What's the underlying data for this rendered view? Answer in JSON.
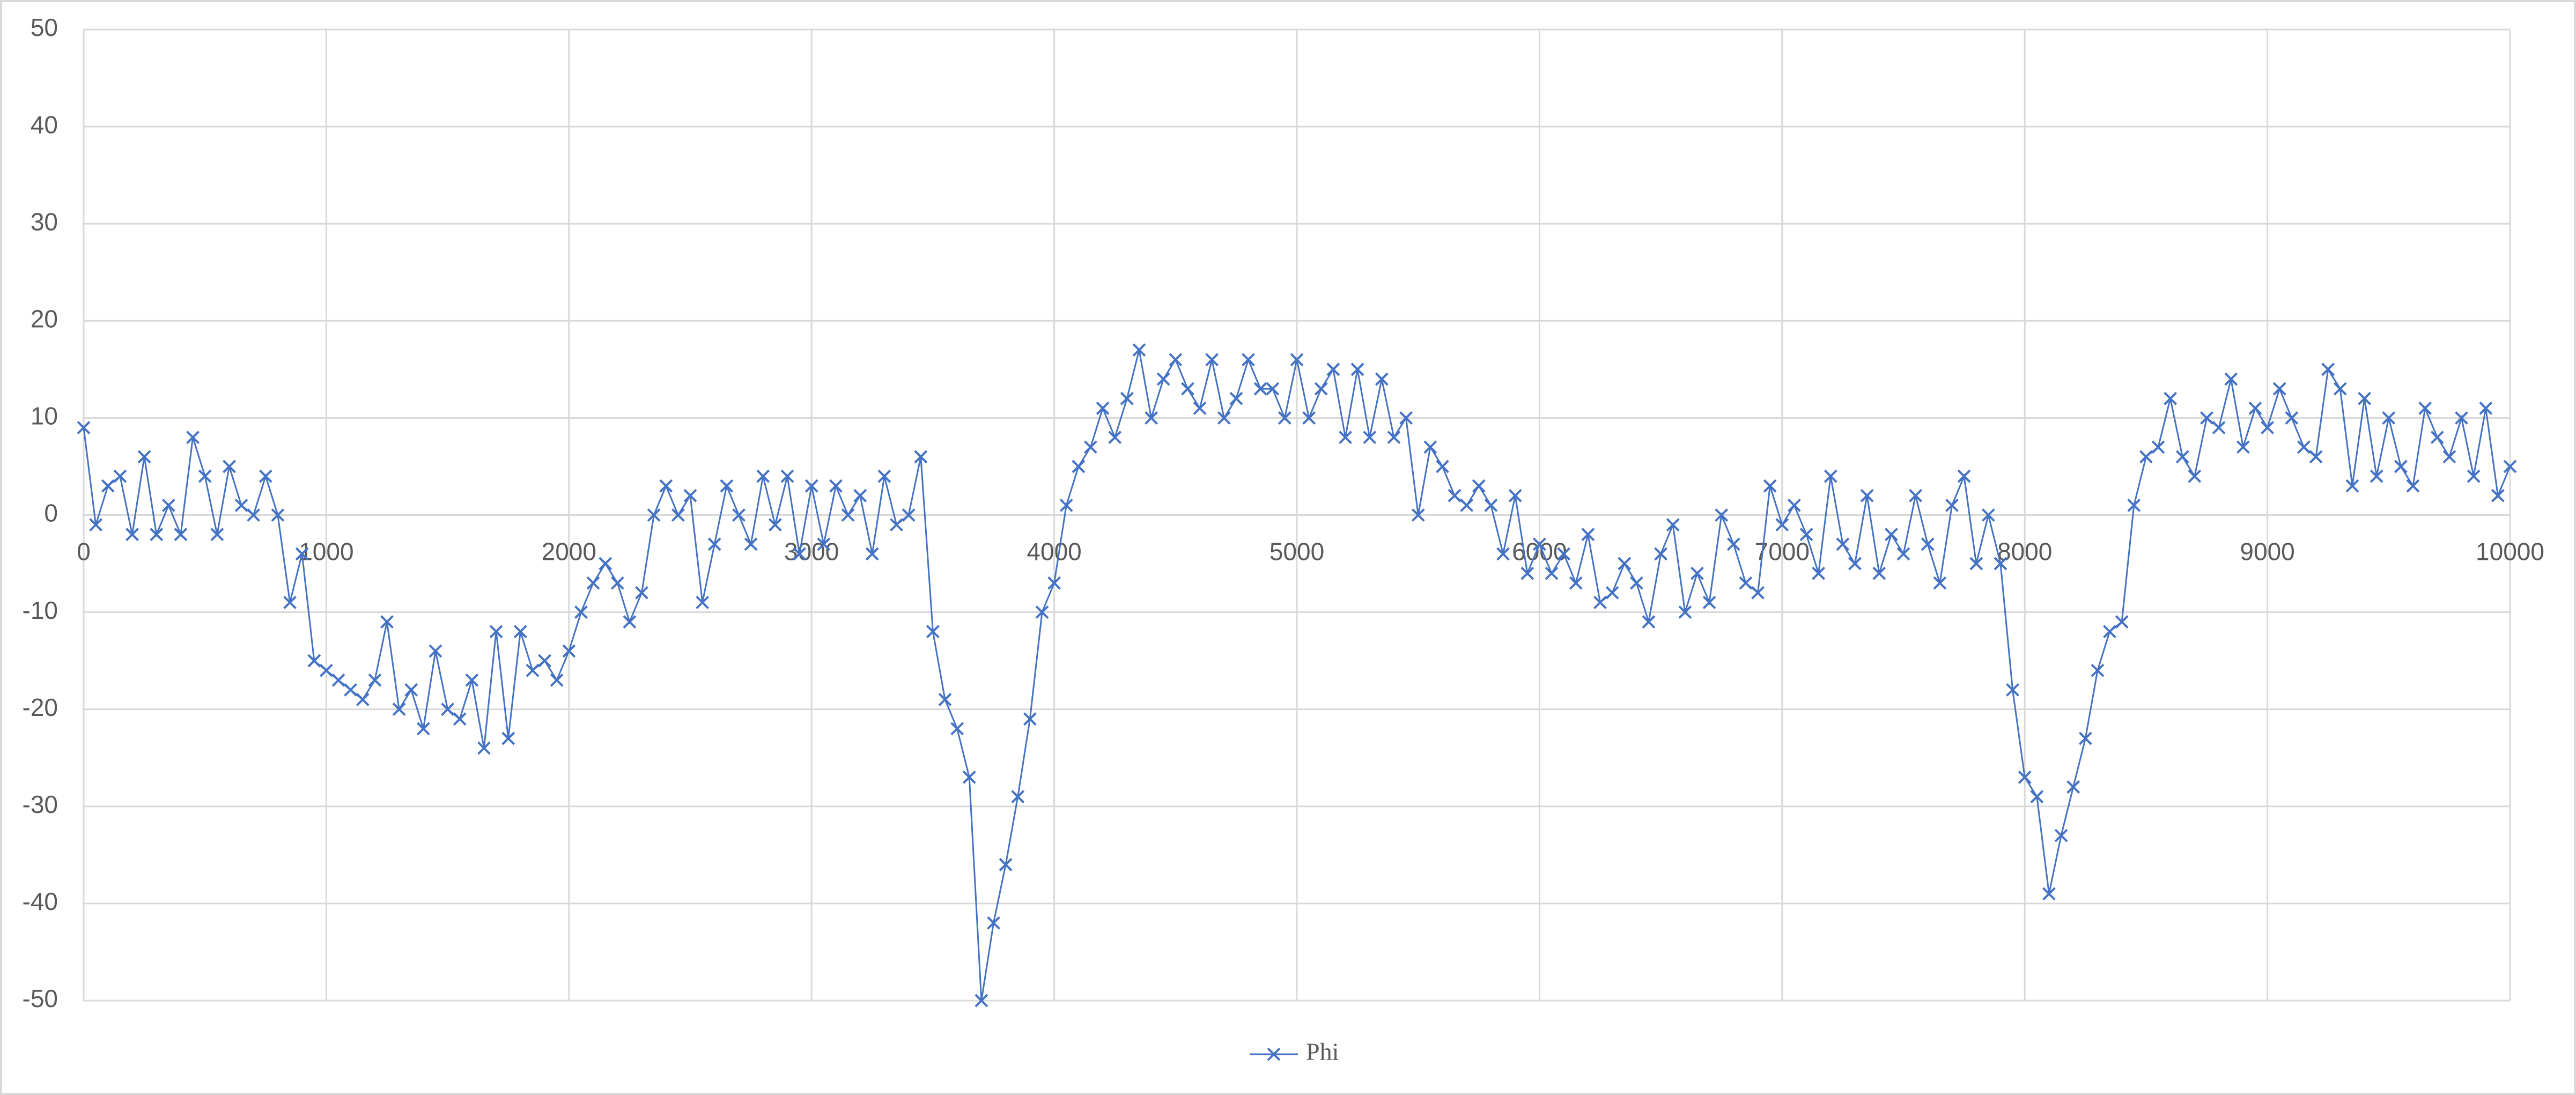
{
  "chart_data": {
    "type": "line",
    "x": [
      0,
      50,
      100,
      150,
      200,
      250,
      300,
      350,
      400,
      450,
      500,
      550,
      600,
      650,
      700,
      750,
      800,
      850,
      900,
      950,
      1000,
      1050,
      1100,
      1150,
      1200,
      1250,
      1300,
      1350,
      1400,
      1450,
      1500,
      1550,
      1600,
      1650,
      1700,
      1750,
      1800,
      1850,
      1900,
      1950,
      2000,
      2050,
      2100,
      2150,
      2200,
      2250,
      2300,
      2350,
      2400,
      2450,
      2500,
      2550,
      2600,
      2650,
      2700,
      2750,
      2800,
      2850,
      2900,
      2950,
      3000,
      3050,
      3100,
      3150,
      3200,
      3250,
      3300,
      3350,
      3400,
      3450,
      3500,
      3550,
      3600,
      3650,
      3700,
      3750,
      3800,
      3850,
      3900,
      3950,
      4000,
      4050,
      4100,
      4150,
      4200,
      4250,
      4300,
      4350,
      4400,
      4450,
      4500,
      4550,
      4600,
      4650,
      4700,
      4750,
      4800,
      4850,
      4900,
      4950,
      5000,
      5050,
      5100,
      5150,
      5200,
      5250,
      5300,
      5350,
      5400,
      5450,
      5500,
      5550,
      5600,
      5650,
      5700,
      5750,
      5800,
      5850,
      5900,
      5950,
      6000,
      6050,
      6100,
      6150,
      6200,
      6250,
      6300,
      6350,
      6400,
      6450,
      6500,
      6550,
      6600,
      6650,
      6700,
      6750,
      6800,
      6850,
      6900,
      6950,
      7000,
      7050,
      7100,
      7150,
      7200,
      7250,
      7300,
      7350,
      7400,
      7450,
      7500,
      7550,
      7600,
      7650,
      7700,
      7750,
      7800,
      7850,
      7900,
      7950,
      8000,
      8050,
      8100,
      8150,
      8200,
      8250,
      8300,
      8350,
      8400,
      8450,
      8500,
      8550,
      8600,
      8650,
      8700,
      8750,
      8800,
      8850,
      8900,
      8950,
      9000,
      9050,
      9100,
      9150,
      9200,
      9250,
      9300,
      9350,
      9400,
      9450,
      9500,
      9550,
      9600,
      9650,
      9700,
      9750,
      9800,
      9850,
      9900,
      9950,
      10000
    ],
    "series": [
      {
        "name": "Phi",
        "color": "#4472c4",
        "values": [
          9,
          -1,
          3,
          4,
          -2,
          6,
          -2,
          1,
          -2,
          8,
          4,
          -2,
          5,
          1,
          0,
          4,
          0,
          -9,
          -4,
          -15,
          -16,
          -17,
          -18,
          -19,
          -17,
          -11,
          -20,
          -18,
          -22,
          -14,
          -20,
          -21,
          -17,
          -24,
          -12,
          -23,
          -12,
          -16,
          -15,
          -17,
          -14,
          -10,
          -7,
          -5,
          -7,
          -11,
          -8,
          0,
          3,
          0,
          2,
          -9,
          -3,
          3,
          0,
          -3,
          4,
          -1,
          4,
          -4,
          3,
          -3,
          3,
          0,
          2,
          -4,
          4,
          -1,
          0,
          6,
          -12,
          -19,
          -22,
          -27,
          -50,
          -42,
          -36,
          -29,
          -21,
          -10,
          -7,
          1,
          5,
          7,
          11,
          8,
          12,
          17,
          10,
          14,
          16,
          13,
          11,
          16,
          10,
          12,
          16,
          13,
          13,
          10,
          16,
          10,
          13,
          15,
          8,
          15,
          8,
          14,
          8,
          10,
          0,
          7,
          5,
          2,
          1,
          3,
          1,
          -4,
          2,
          -6,
          -3,
          -6,
          -4,
          -7,
          -2,
          -9,
          -8,
          -5,
          -7,
          -11,
          -4,
          -1,
          -10,
          -6,
          -9,
          0,
          -3,
          -7,
          -8,
          3,
          -1,
          1,
          -2,
          -6,
          4,
          -3,
          -5,
          2,
          -6,
          -2,
          -4,
          2,
          -3,
          -7,
          1,
          4,
          -5,
          0,
          -5,
          -18,
          -27,
          -29,
          -39,
          -33,
          -28,
          -23,
          -16,
          -12,
          -11,
          1,
          6,
          7,
          12,
          6,
          4,
          10,
          9,
          14,
          7,
          11,
          9,
          13,
          10,
          7,
          6,
          15,
          13,
          3,
          12,
          4,
          10,
          5,
          3,
          11,
          8,
          6,
          10,
          4,
          11,
          2,
          5
        ]
      }
    ],
    "xlim": [
      0,
      10000
    ],
    "xticks": [
      0,
      1000,
      2000,
      3000,
      4000,
      5000,
      6000,
      7000,
      8000,
      9000,
      10000
    ],
    "ylim": [
      -50,
      50
    ],
    "yticks": [
      -50,
      -40,
      -30,
      -20,
      -10,
      0,
      10,
      20,
      30,
      40,
      50
    ],
    "grid": true,
    "legend": "bottom"
  }
}
